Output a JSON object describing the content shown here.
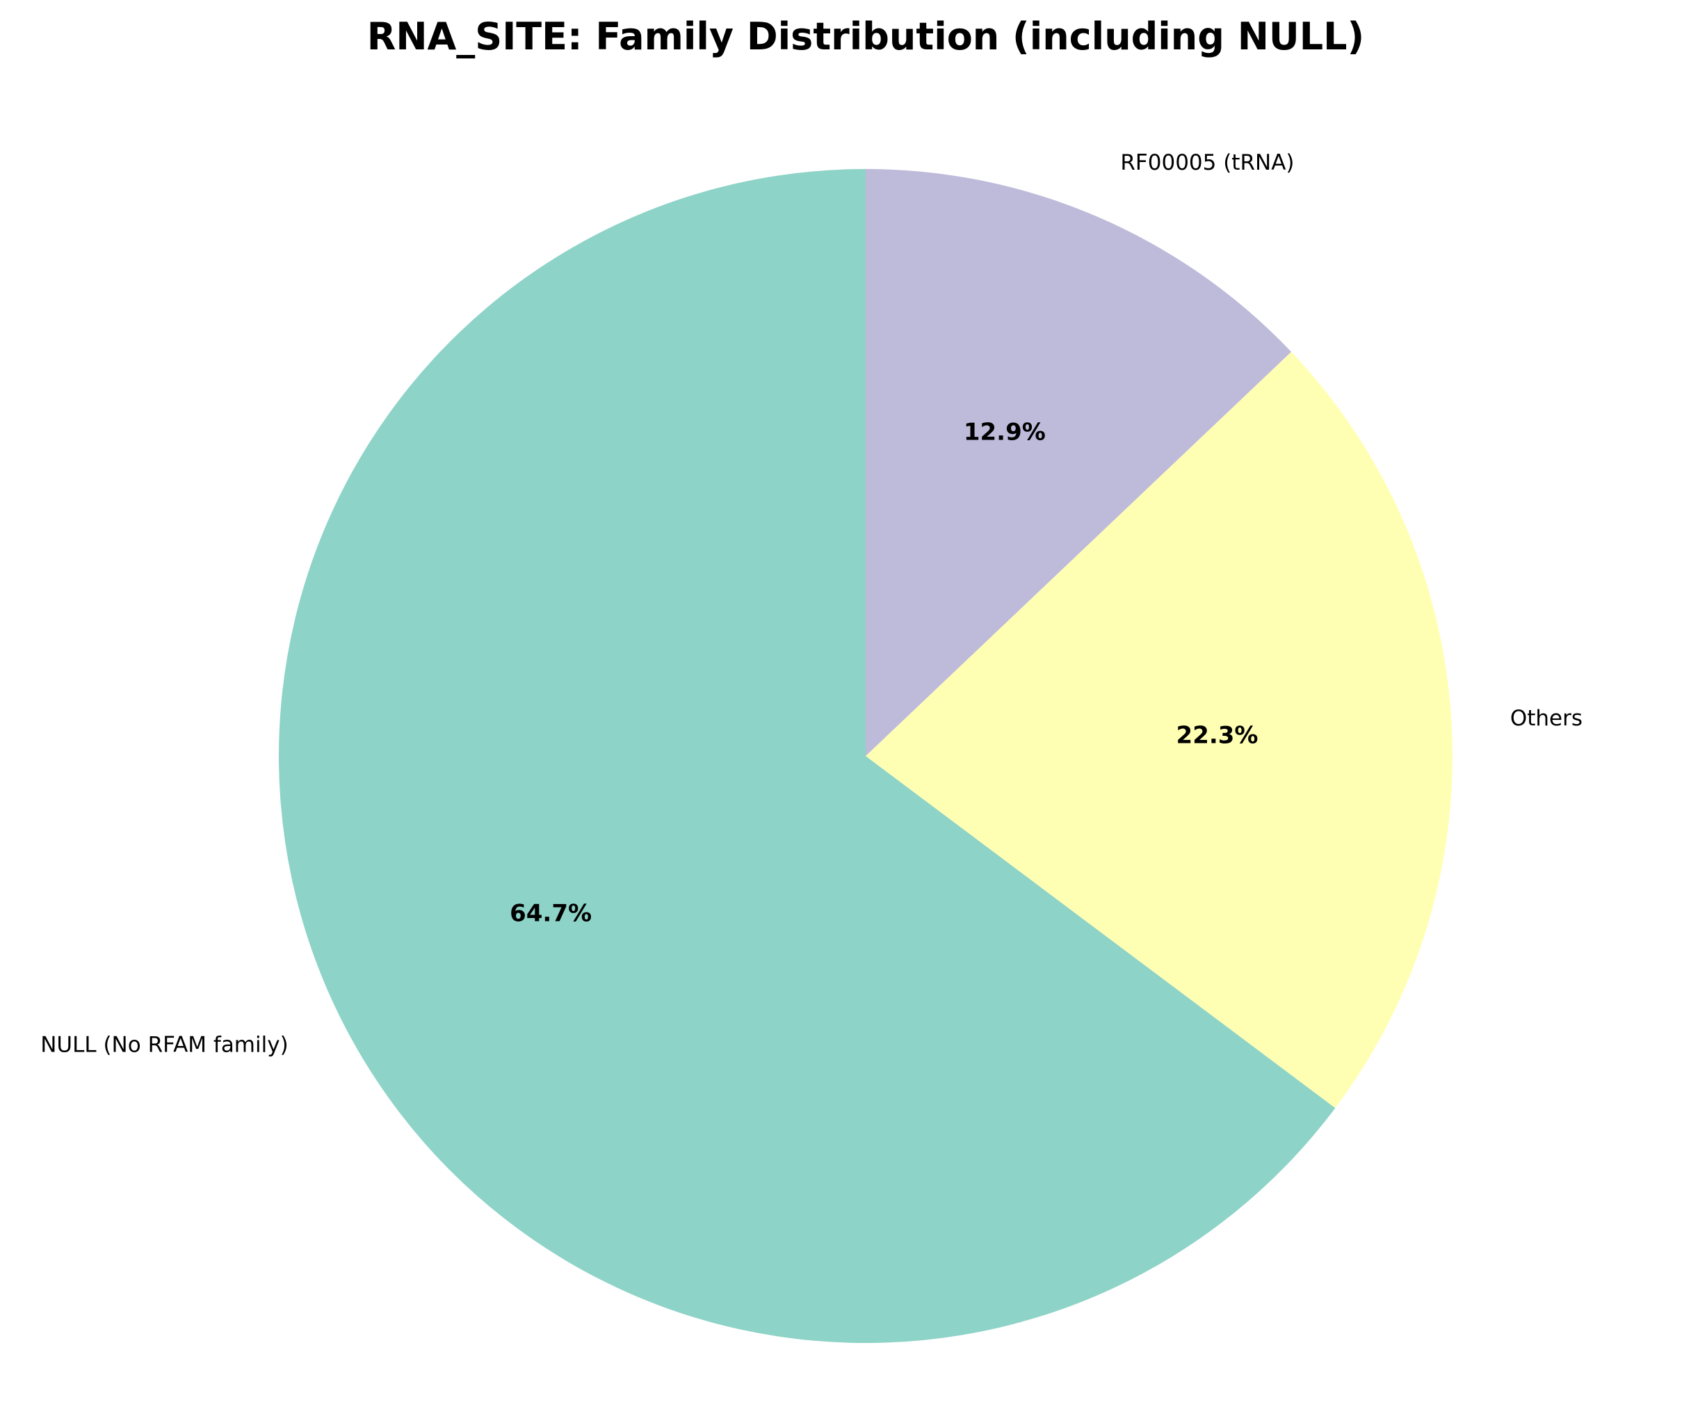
{
  "chart_data": {
    "type": "pie",
    "title": "RNA_SITE: Family Distribution (including NULL)",
    "slices": [
      {
        "label": "NULL (No RFAM family)",
        "value": 64.7,
        "pct_label": "64.7%",
        "color": "#8dd3c7"
      },
      {
        "label": "Others",
        "value": 22.3,
        "pct_label": "22.3%",
        "color": "#ffffb3"
      },
      {
        "label": "RF00005 (tRNA)",
        "value": 12.9,
        "pct_label": "12.9%",
        "color": "#bebada"
      }
    ],
    "start_angle_deg": 90,
    "direction": "counterclockwise"
  }
}
